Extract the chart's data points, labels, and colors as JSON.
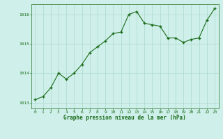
{
  "x": [
    0,
    1,
    2,
    3,
    4,
    5,
    6,
    7,
    8,
    9,
    10,
    11,
    12,
    13,
    14,
    15,
    16,
    17,
    18,
    19,
    20,
    21,
    22,
    23
  ],
  "y": [
    1013.1,
    1013.2,
    1013.5,
    1014.0,
    1013.8,
    1014.0,
    1014.3,
    1014.7,
    1014.9,
    1015.1,
    1015.35,
    1015.4,
    1016.0,
    1016.1,
    1015.7,
    1015.65,
    1015.6,
    1015.2,
    1015.2,
    1015.05,
    1015.15,
    1015.2,
    1015.8,
    1016.2
  ],
  "line_color": "#1a6b1a",
  "marker_color": "#1a6b1a",
  "bg_color": "#cff0ea",
  "grid_color": "#aad9cc",
  "border_color": "#4a8a4a",
  "xlabel": "Graphe pression niveau de la mer (hPa)",
  "xlabel_color": "#1a6b1a",
  "tick_color": "#1a6b1a",
  "ylim": [
    1012.8,
    1016.35
  ],
  "yticks": [
    1013,
    1014,
    1015,
    1016
  ],
  "xlim": [
    -0.5,
    23.5
  ],
  "xticks": [
    0,
    1,
    2,
    3,
    4,
    5,
    6,
    7,
    8,
    9,
    10,
    11,
    12,
    13,
    14,
    15,
    16,
    17,
    18,
    19,
    20,
    21,
    22,
    23
  ],
  "figsize": [
    3.2,
    2.0
  ],
  "dpi": 100
}
